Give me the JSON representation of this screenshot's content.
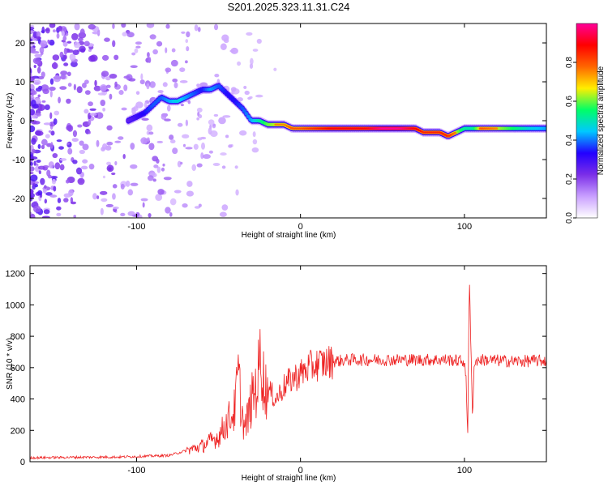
{
  "figure": {
    "title": "S201.2025.323.11.31.C24"
  },
  "chart_data": [
    {
      "type": "heatmap",
      "panel": "spectrogram",
      "xlabel": "Height of straight line (km)",
      "ylabel": "Frequency (Hz)",
      "xlim": [
        -165,
        150
      ],
      "ylim": [
        -25,
        25
      ],
      "xticks": [
        -100,
        0,
        100
      ],
      "yticks": [
        -20,
        -10,
        0,
        10,
        20
      ],
      "colorbar": {
        "label": "Normalized spectral amplitude",
        "range": [
          0,
          1
        ],
        "ticks": [
          0.0,
          0.2,
          0.4,
          0.6,
          0.8
        ],
        "colormap": [
          "#ffffff",
          "#c9a0ff",
          "#7b2ee8",
          "#2200ff",
          "#00c8ff",
          "#00ff66",
          "#ffee00",
          "#ff6600",
          "#ff0000",
          "#ff0099"
        ]
      },
      "ridge": {
        "x": [
          -105,
          -100,
          -95,
          -90,
          -85,
          -80,
          -75,
          -70,
          -65,
          -60,
          -55,
          -50,
          -45,
          -40,
          -35,
          -30,
          -25,
          -20,
          -15,
          -10,
          -5,
          0,
          10,
          20,
          30,
          40,
          50,
          60,
          70,
          75,
          80,
          85,
          90,
          95,
          100,
          105,
          110,
          120,
          130,
          140,
          150
        ],
        "freq": [
          0,
          1,
          2,
          4,
          6,
          5,
          5,
          6,
          7,
          8,
          8,
          9,
          7,
          5,
          3,
          0,
          0,
          -1,
          -1,
          -1,
          -2,
          -2,
          -2,
          -2,
          -2,
          -2,
          -2,
          -2,
          -2,
          -3,
          -3,
          -3,
          -4,
          -3,
          -2,
          -2,
          -2,
          -2,
          -2,
          -2,
          -2
        ],
        "amplitude": [
          0.3,
          0.35,
          0.4,
          0.45,
          0.45,
          0.5,
          0.55,
          0.5,
          0.45,
          0.4,
          0.5,
          0.45,
          0.4,
          0.4,
          0.45,
          0.5,
          0.6,
          0.7,
          0.75,
          0.75,
          0.8,
          0.8,
          0.85,
          0.9,
          0.9,
          0.9,
          1.0,
          1.0,
          0.9,
          0.85,
          0.85,
          0.85,
          0.85,
          0.75,
          0.6,
          0.6,
          0.8,
          0.75,
          0.65,
          0.55,
          0.5
        ]
      }
    },
    {
      "type": "line",
      "panel": "snr",
      "xlabel": "Height of straight line (km)",
      "ylabel": "SNR (10 * v/v)",
      "xlim": [
        -165,
        150
      ],
      "ylim": [
        0,
        1250
      ],
      "xticks": [
        -100,
        0,
        100
      ],
      "yticks": [
        0,
        200,
        400,
        600,
        800,
        1000,
        1200
      ],
      "series": [
        {
          "name": "SNR",
          "color": "#ee2222",
          "x": [
            -165,
            -140,
            -110,
            -80,
            -70,
            -60,
            -50,
            -45,
            -40,
            -38,
            -36,
            -34,
            -30,
            -26,
            -24,
            -22,
            -20,
            -15,
            -10,
            -5,
            0,
            5,
            10,
            20,
            30,
            50,
            70,
            90,
            100,
            101,
            102,
            103,
            104,
            105,
            106,
            110,
            130,
            150
          ],
          "y": [
            25,
            28,
            30,
            40,
            70,
            100,
            160,
            250,
            330,
            560,
            330,
            200,
            380,
            520,
            710,
            450,
            460,
            400,
            480,
            530,
            560,
            600,
            620,
            640,
            650,
            650,
            650,
            650,
            640,
            520,
            150,
            1200,
            700,
            250,
            640,
            650,
            640,
            645
          ]
        }
      ]
    }
  ]
}
